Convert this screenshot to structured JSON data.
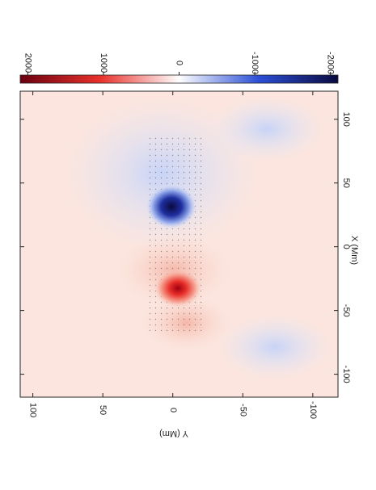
{
  "chart_data": {
    "type": "map",
    "x_label": "X (Mm)",
    "y_label": "Y (Mm)",
    "xlim": [
      -118,
      122
    ],
    "xticks": [
      -100,
      -50,
      0,
      50,
      100
    ],
    "ylim": [
      -118,
      109
    ],
    "yticks": [
      -100,
      -50,
      0,
      50,
      100
    ],
    "colorbar": {
      "lim": [
        -2100,
        2100
      ],
      "ticks": [
        -2000,
        -1000,
        0,
        1000,
        2000
      ],
      "colors": [
        "#0a0a40",
        "#2b4fd6",
        "#ffffff",
        "#e8302a",
        "#6a0010"
      ]
    }
  }
}
